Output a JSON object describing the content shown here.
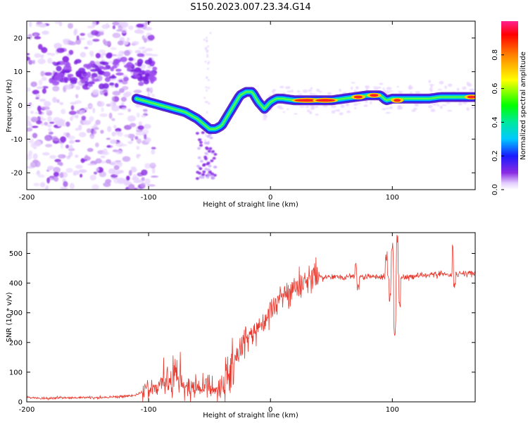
{
  "title": "S150.2023.007.23.34.G14",
  "chart_data": [
    {
      "type": "heatmap",
      "xlabel": "Height of straight line (km)",
      "ylabel": "Frequency (Hz)",
      "xlim": [
        -200,
        168
      ],
      "ylim": [
        -25,
        25
      ],
      "x_ticks": [
        -200,
        -100,
        0,
        100
      ],
      "x_tick_labels": [
        "-200",
        "-100",
        "0",
        "100"
      ],
      "y_ticks": [
        -20,
        -10,
        0,
        10,
        20
      ],
      "y_tick_labels": [
        "-20",
        "-10",
        "0",
        "10",
        "20"
      ],
      "colorbar": {
        "label": "Normalized spectral amplitude",
        "range": [
          0,
          1
        ],
        "ticks": [
          0,
          0.2,
          0.4,
          0.6,
          0.8
        ],
        "tick_labels": [
          "0.0",
          "0.2",
          "0.4",
          "0.6",
          "0.8"
        ],
        "colormap": "rainbow"
      },
      "ridge": {
        "x": [
          -110,
          -100,
          -90,
          -80,
          -70,
          -60,
          -50,
          -45,
          -40,
          -35,
          -30,
          -25,
          -20,
          -15,
          -10,
          -5,
          0,
          5,
          10,
          20,
          30,
          40,
          50,
          60,
          70,
          80,
          90,
          95,
          100,
          110,
          120,
          130,
          140,
          150,
          160,
          168
        ],
        "y": [
          2,
          1,
          0,
          -1,
          -2,
          -4,
          -7,
          -7,
          -6,
          -3,
          0,
          3,
          4,
          4,
          1,
          -1,
          1,
          2,
          2,
          1.5,
          1.5,
          1.5,
          1.5,
          2,
          2.5,
          3,
          3,
          1.5,
          2,
          2,
          2,
          2,
          2.5,
          2.5,
          2.5,
          2.5
        ]
      },
      "noise_region_x": [
        -200,
        -100
      ]
    },
    {
      "type": "line",
      "xlabel": "Height of straight line (km)",
      "ylabel": "SNR (10 * v/v)",
      "xlim": [
        -200,
        168
      ],
      "ylim": [
        0,
        570
      ],
      "x_ticks": [
        -200,
        -100,
        0,
        100
      ],
      "x_tick_labels": [
        "-200",
        "-100",
        "0",
        "100"
      ],
      "y_ticks": [
        0,
        100,
        200,
        300,
        400,
        500
      ],
      "y_tick_labels": [
        "0",
        "100",
        "200",
        "300",
        "400",
        "500"
      ],
      "series": [
        {
          "color": "#e8392e",
          "x": [
            -200,
            -190,
            -180,
            -170,
            -160,
            -150,
            -140,
            -130,
            -120,
            -110,
            -100,
            -95,
            -90,
            -85,
            -80,
            -75,
            -70,
            -65,
            -60,
            -55,
            -50,
            -45,
            -40,
            -35,
            -30,
            -25,
            -20,
            -15,
            -10,
            -5,
            0,
            5,
            10,
            15,
            20,
            25,
            30,
            35,
            40,
            45,
            50,
            55,
            60,
            65,
            70,
            75,
            80,
            85,
            90,
            95,
            100,
            105,
            110,
            120,
            130,
            140,
            150,
            160,
            168
          ],
          "y": [
            15,
            12,
            14,
            13,
            15,
            14,
            15,
            16,
            18,
            25,
            40,
            45,
            55,
            60,
            70,
            65,
            55,
            50,
            45,
            55,
            40,
            30,
            45,
            90,
            140,
            180,
            210,
            230,
            260,
            280,
            300,
            320,
            350,
            370,
            385,
            395,
            405,
            415,
            420,
            420,
            418,
            420,
            420,
            422,
            420,
            422,
            420,
            425,
            420,
            425,
            420,
            425,
            420,
            425,
            425,
            430,
            430,
            432,
            430
          ]
        }
      ]
    }
  ]
}
